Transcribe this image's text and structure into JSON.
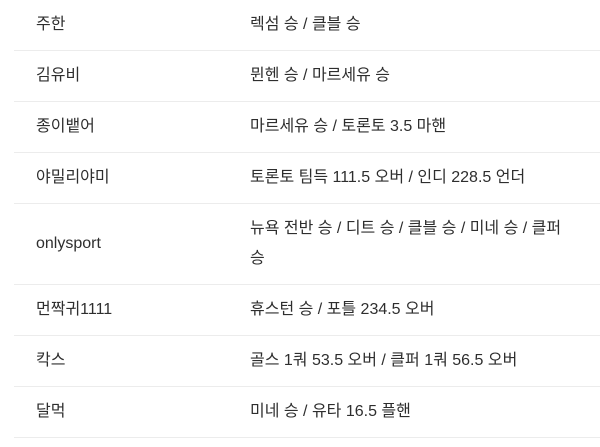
{
  "page": {
    "background_color": "#ffffff",
    "text_color": "#2e2e2e",
    "divider_color": "#ececec"
  },
  "table": {
    "columns": [
      "user",
      "picks"
    ],
    "rows": [
      {
        "user": "주한",
        "picks": "렉섬 승 / 클블 승"
      },
      {
        "user": "김유비",
        "picks": "뮌헨 승 / 마르세유 승"
      },
      {
        "user": "종이뱉어",
        "picks": "마르세유 승 / 토론토 3.5 마핸"
      },
      {
        "user": "야밀리야미",
        "picks": "토론토 팀득 111.5 오버 / 인디 228.5 언더"
      },
      {
        "user": "onlysport",
        "picks": "뉴욕 전반 승 / 디트 승 / 클블 승 / 미네 승 / 클퍼 승"
      },
      {
        "user": "먼짝귀1111",
        "picks": "휴스턴 승 / 포틀 234.5 오버"
      },
      {
        "user": "칵스",
        "picks": "골스 1쿼 53.5 오버 / 클퍼 1쿼 56.5 오버"
      },
      {
        "user": "달먹",
        "picks": "미네 승 / 유타 16.5 플핸"
      }
    ]
  }
}
